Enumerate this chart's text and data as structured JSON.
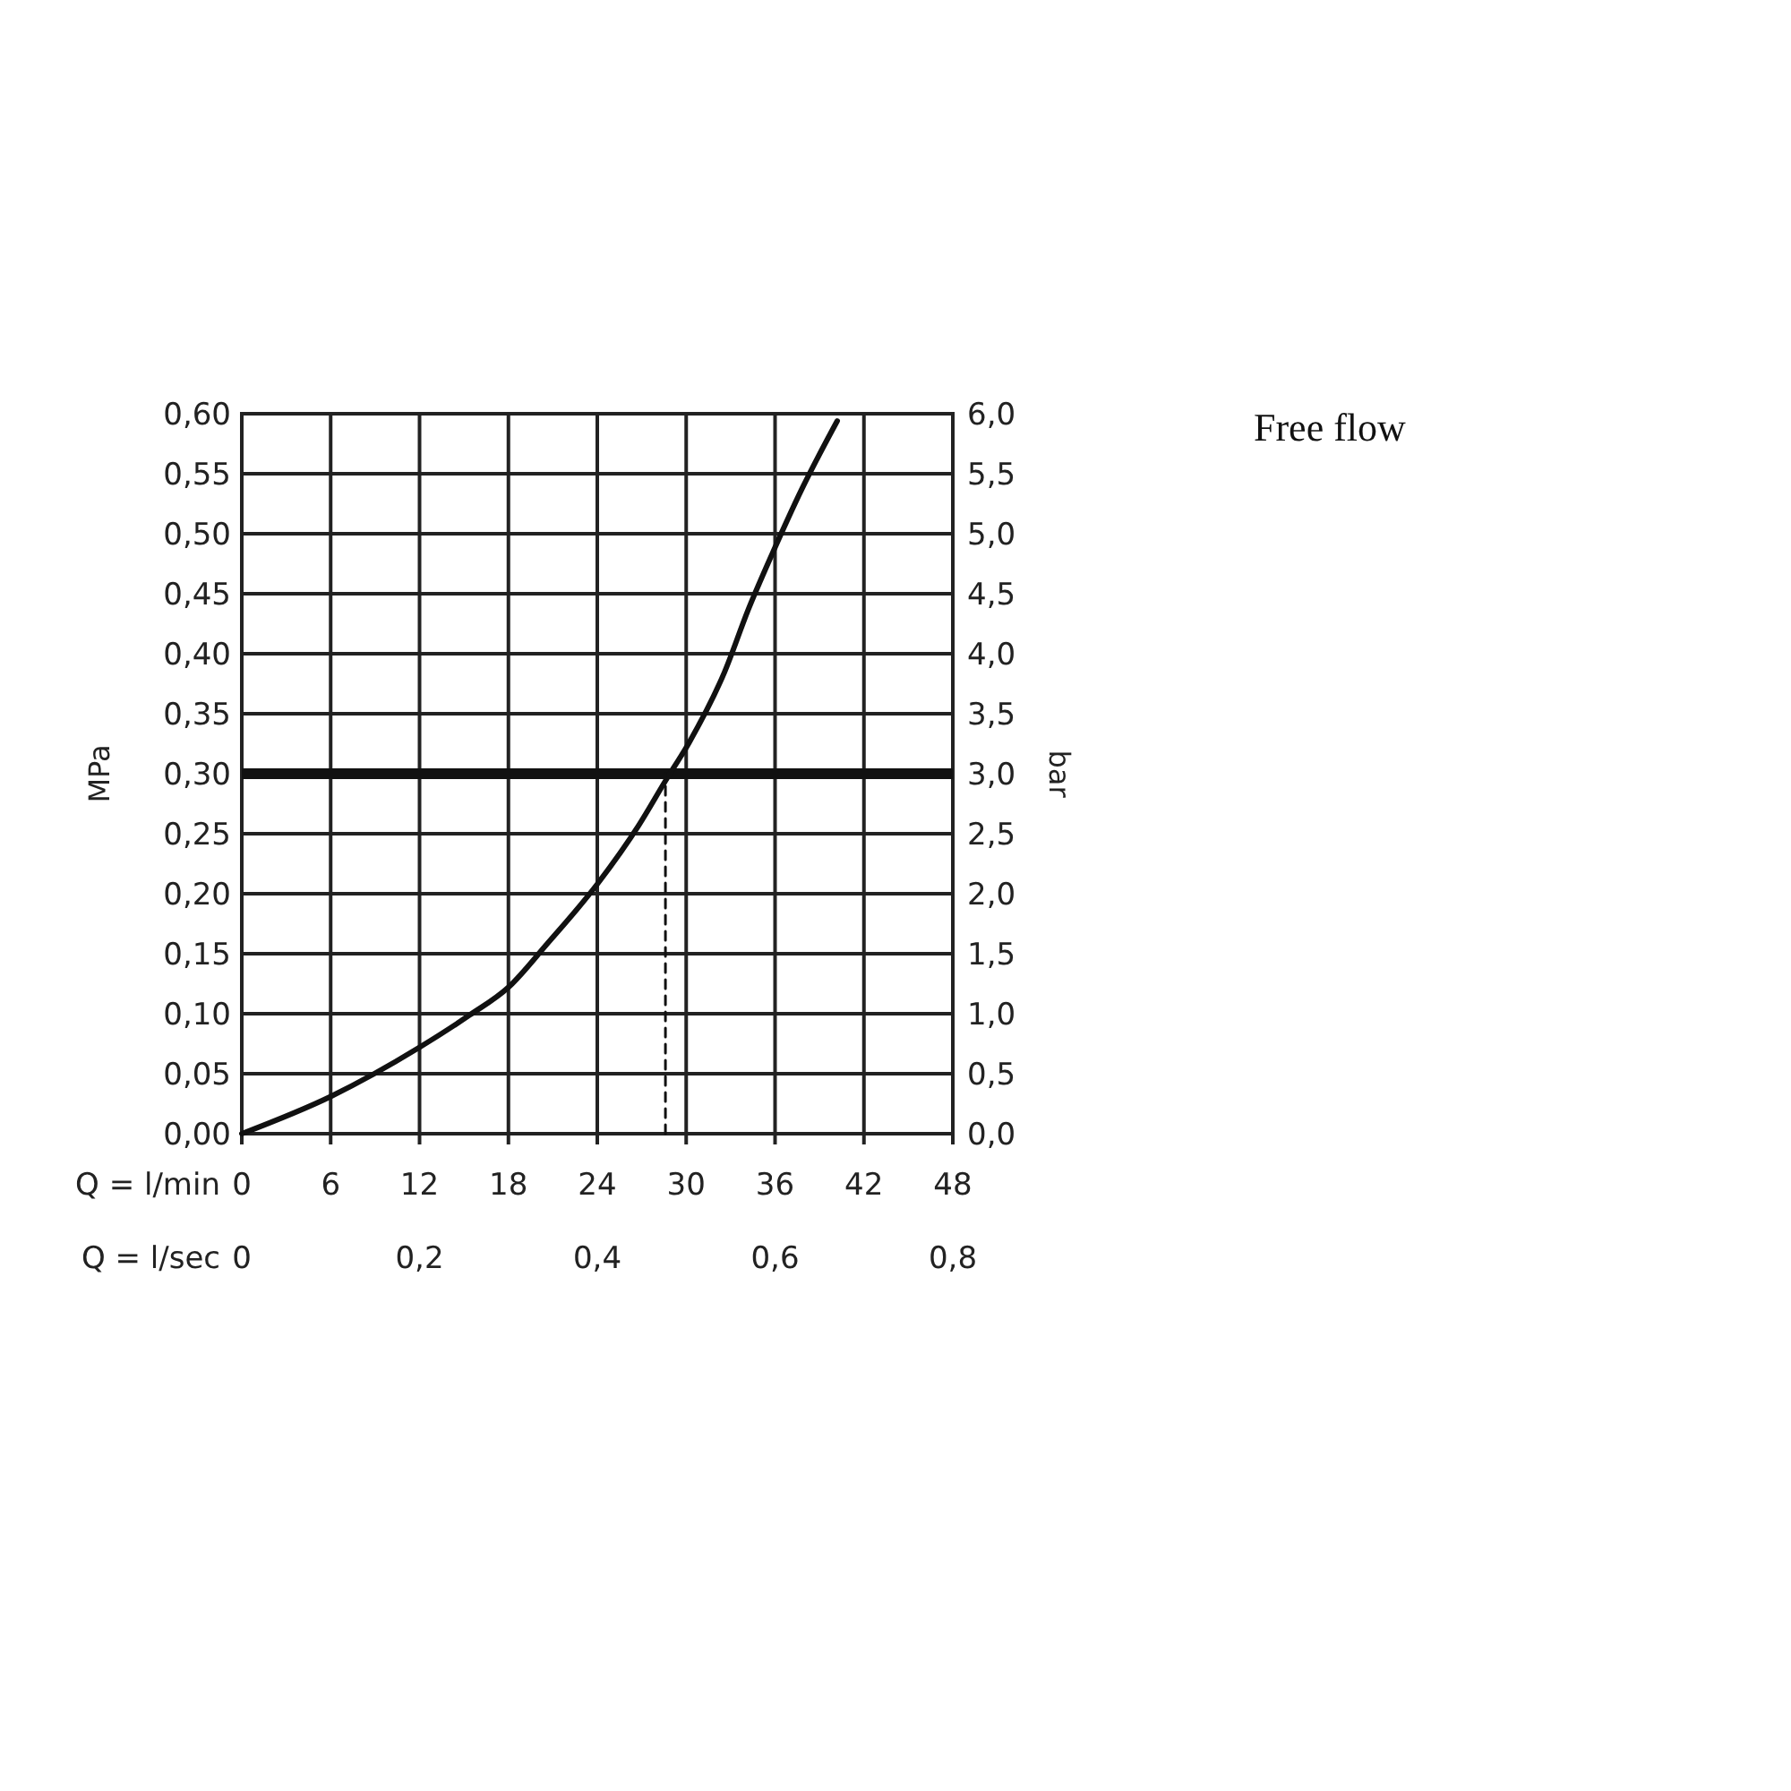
{
  "chart_data": {
    "type": "line",
    "title": "Free flow",
    "xlabel": "Q = l/min",
    "x2label": "Q = l/sec",
    "ylabel": "MPa",
    "y2label": "bar",
    "xlim": [
      0,
      48
    ],
    "xticks": [
      0,
      6,
      12,
      18,
      24,
      30,
      36,
      42,
      48
    ],
    "x2lim": [
      0,
      0.8
    ],
    "x2ticks": [
      0,
      {
        "value": 0.2,
        "label": "0,2"
      },
      {
        "value": 0.4,
        "label": "0,4"
      },
      {
        "value": 0.6,
        "label": "0,6"
      },
      {
        "value": 0.8,
        "label": "0,8"
      }
    ],
    "ylim": [
      0,
      0.6
    ],
    "yticks": [
      {
        "value": 0,
        "label": "0,00"
      },
      {
        "value": 0.05,
        "label": "0,05"
      },
      {
        "value": 0.1,
        "label": "0,10"
      },
      {
        "value": 0.15,
        "label": "0,15"
      },
      {
        "value": 0.2,
        "label": "0,20"
      },
      {
        "value": 0.25,
        "label": "0,25"
      },
      {
        "value": 0.3,
        "label": "0,30"
      },
      {
        "value": 0.35,
        "label": "0,35"
      },
      {
        "value": 0.4,
        "label": "0,40"
      },
      {
        "value": 0.45,
        "label": "0,45"
      },
      {
        "value": 0.5,
        "label": "0,50"
      },
      {
        "value": 0.55,
        "label": "0,55"
      },
      {
        "value": 0.6,
        "label": "0,60"
      }
    ],
    "y2lim": [
      0,
      6
    ],
    "y2ticks": [
      {
        "value": 0,
        "label": "0,0"
      },
      {
        "value": 0.5,
        "label": "0,5"
      },
      {
        "value": 1,
        "label": "1,0"
      },
      {
        "value": 1.5,
        "label": "1,5"
      },
      {
        "value": 2,
        "label": "2,0"
      },
      {
        "value": 2.5,
        "label": "2,5"
      },
      {
        "value": 3,
        "label": "3,0"
      },
      {
        "value": 3.5,
        "label": "3,5"
      },
      {
        "value": 4,
        "label": "4,0"
      },
      {
        "value": 4.5,
        "label": "4,5"
      },
      {
        "value": 5,
        "label": "5,0"
      },
      {
        "value": 5.5,
        "label": "5,5"
      },
      {
        "value": 6,
        "label": "6,0"
      }
    ],
    "grid": true,
    "ref_lines": [
      {
        "axis": "y",
        "value": 0.3,
        "color": "#111111"
      }
    ],
    "series": [
      {
        "color": "#111111",
        "x": [
          0,
          6,
          12,
          15.4,
          18,
          20.6,
          24,
          26.8,
          28.6,
          30.2,
          32.6,
          34.2,
          35.8,
          37.8,
          40.2
        ],
        "values": [
          0,
          0.031,
          0.072,
          0.099,
          0.122,
          0.158,
          0.208,
          0.257,
          0.294,
          0.326,
          0.385,
          0.437,
          0.483,
          0.537,
          0.594
        ]
      },
      {
        "color": "#111111",
        "line_style": "dashed",
        "x": [
          28.6,
          28.6
        ],
        "values": [
          0,
          0.3
        ]
      }
    ]
  }
}
